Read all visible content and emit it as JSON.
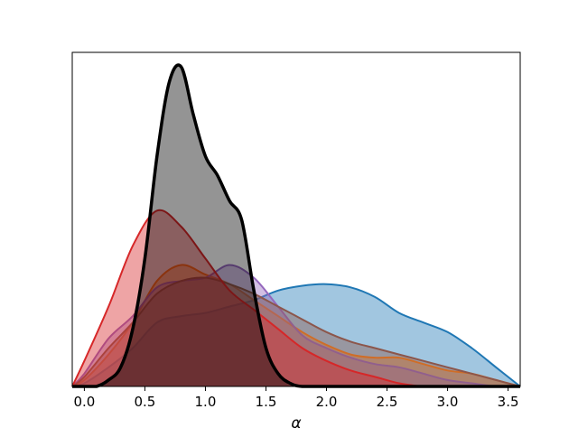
{
  "chart_data": {
    "type": "area",
    "title": "",
    "xlabel": "α",
    "ylabel": "",
    "xlim": [
      -0.1,
      3.6
    ],
    "ylim": [
      0,
      1.0
    ],
    "xticks": [
      "0.0",
      "0.5",
      "1.0",
      "1.5",
      "2.0",
      "2.5",
      "3.0",
      "3.5"
    ],
    "xtick_values": [
      0.0,
      0.5,
      1.0,
      1.5,
      2.0,
      2.5,
      3.0,
      3.5
    ],
    "yticks_visible": false,
    "grid": false,
    "legend": "none",
    "series": [
      {
        "color": "#1f77b4",
        "x": [
          -0.1,
          0.0,
          0.2,
          0.4,
          0.6,
          0.8,
          1.0,
          1.2,
          1.4,
          1.6,
          1.8,
          2.0,
          2.2,
          2.4,
          2.6,
          2.8,
          3.0,
          3.2,
          3.4,
          3.6
        ],
        "y": [
          0.0,
          0.01,
          0.06,
          0.12,
          0.2,
          0.22,
          0.23,
          0.25,
          0.27,
          0.3,
          0.315,
          0.32,
          0.31,
          0.28,
          0.23,
          0.2,
          0.17,
          0.12,
          0.06,
          0.0
        ]
      },
      {
        "color": "#ff7f0e",
        "x": [
          -0.1,
          0.0,
          0.2,
          0.4,
          0.6,
          0.8,
          1.0,
          1.2,
          1.4,
          1.6,
          1.8,
          2.0,
          2.2,
          2.4,
          2.6,
          2.8,
          3.0,
          3.2,
          3.4,
          3.6
        ],
        "y": [
          0.0,
          0.02,
          0.1,
          0.2,
          0.33,
          0.38,
          0.35,
          0.32,
          0.27,
          0.22,
          0.17,
          0.13,
          0.1,
          0.09,
          0.09,
          0.07,
          0.05,
          0.04,
          0.02,
          0.0
        ]
      },
      {
        "color": "#9467bd",
        "x": [
          -0.1,
          0.0,
          0.2,
          0.4,
          0.6,
          0.8,
          1.0,
          1.2,
          1.4,
          1.6,
          1.8,
          2.0,
          2.2,
          2.4,
          2.6,
          2.8,
          3.0,
          3.2,
          3.4,
          3.6
        ],
        "y": [
          0.0,
          0.04,
          0.15,
          0.22,
          0.31,
          0.33,
          0.34,
          0.38,
          0.34,
          0.25,
          0.16,
          0.12,
          0.09,
          0.07,
          0.06,
          0.04,
          0.02,
          0.01,
          0.0,
          0.0
        ]
      },
      {
        "color": "#8c564b",
        "x": [
          -0.1,
          0.0,
          0.2,
          0.4,
          0.6,
          0.8,
          1.0,
          1.2,
          1.4,
          1.6,
          1.8,
          2.0,
          2.2,
          2.4,
          2.6,
          2.8,
          3.0,
          3.2,
          3.4,
          3.6
        ],
        "y": [
          0.0,
          0.03,
          0.12,
          0.2,
          0.29,
          0.33,
          0.34,
          0.32,
          0.29,
          0.25,
          0.21,
          0.17,
          0.14,
          0.12,
          0.1,
          0.08,
          0.06,
          0.04,
          0.02,
          0.0
        ]
      },
      {
        "color": "#d62728",
        "x": [
          -0.1,
          0.0,
          0.2,
          0.4,
          0.6,
          0.8,
          1.0,
          1.2,
          1.4,
          1.6,
          1.8,
          2.0,
          2.2,
          2.4,
          2.6,
          2.8,
          3.0,
          3.2,
          3.4,
          3.6
        ],
        "y": [
          0.0,
          0.08,
          0.25,
          0.44,
          0.55,
          0.5,
          0.4,
          0.3,
          0.24,
          0.18,
          0.12,
          0.08,
          0.05,
          0.03,
          0.01,
          0.0,
          0.0,
          0.0,
          0.0,
          0.0
        ]
      },
      {
        "color": "#000000",
        "x": [
          -0.1,
          0.0,
          0.1,
          0.2,
          0.3,
          0.4,
          0.5,
          0.6,
          0.7,
          0.8,
          0.9,
          1.0,
          1.1,
          1.2,
          1.3,
          1.4,
          1.5,
          1.6,
          1.7,
          1.8,
          2.0,
          2.2,
          3.6
        ],
        "y": [
          0.0,
          0.0,
          0.0,
          0.02,
          0.06,
          0.18,
          0.4,
          0.72,
          0.95,
          1.0,
          0.85,
          0.72,
          0.66,
          0.58,
          0.52,
          0.3,
          0.12,
          0.04,
          0.01,
          0.0,
          0.0,
          0.0,
          0.0
        ]
      }
    ]
  }
}
